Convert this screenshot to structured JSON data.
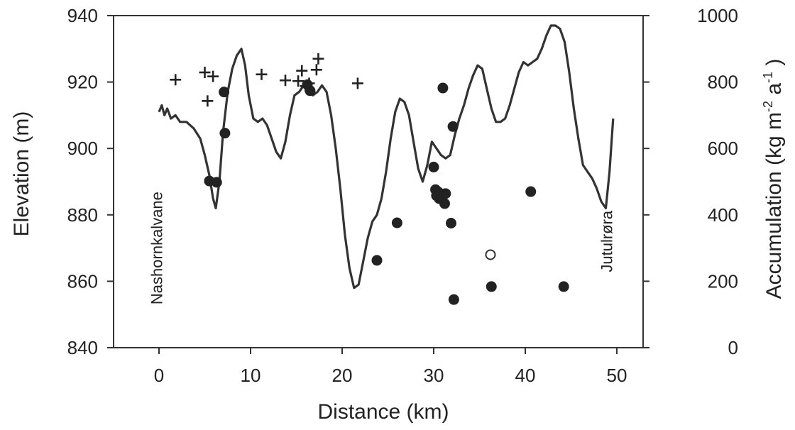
{
  "chart_data": {
    "type": "line",
    "xlabel": "Distance (km)",
    "ylabel_left": "Elevation (m)",
    "ylabel_right": [
      "Accumulation (kg m",
      "-2",
      " a",
      "-1",
      " )"
    ],
    "xlim": [
      -5,
      55
    ],
    "ylim_left": [
      840,
      940
    ],
    "ylim_right": [
      0,
      1000
    ],
    "x_ticks": [
      0,
      10,
      20,
      30,
      40,
      50
    ],
    "y_ticks_left": [
      840,
      860,
      880,
      900,
      920,
      940
    ],
    "y_ticks_right": [
      0,
      200,
      400,
      600,
      800,
      1000
    ],
    "annotations": [
      {
        "text": "Nashornkalvane",
        "x": 0.5,
        "y": 870
      },
      {
        "text": "Jutulrøra",
        "x": 49.5,
        "y": 872
      }
    ],
    "elevation_profile": {
      "x": [
        0,
        0.3,
        0.6,
        0.9,
        1.3,
        1.8,
        2.3,
        3.0,
        3.8,
        4.5,
        5.0,
        5.5,
        5.9,
        6.2,
        6.6,
        7.0,
        7.5,
        8.0,
        8.5,
        9.0,
        9.4,
        9.8,
        10.3,
        10.8,
        11.3,
        11.8,
        12.3,
        12.8,
        13.3,
        13.8,
        14.3,
        14.8,
        15.3,
        15.8,
        16.3,
        16.8,
        17.3,
        17.8,
        18.3,
        18.8,
        19.3,
        19.8,
        20.3,
        20.8,
        21.3,
        21.8,
        22.3,
        22.8,
        23.3,
        23.8,
        24.3,
        24.8,
        25.3,
        25.8,
        26.3,
        26.8,
        27.3,
        27.8,
        28.3,
        28.8,
        29.3,
        29.8,
        30.3,
        30.8,
        31.3,
        31.8,
        32.3,
        32.8,
        33.3,
        33.8,
        34.3,
        34.8,
        35.3,
        35.8,
        36.3,
        36.8,
        37.3,
        37.8,
        38.3,
        38.8,
        39.3,
        39.8,
        40.3,
        40.8,
        41.3,
        41.8,
        42.3,
        42.8,
        43.3,
        43.8,
        44.3,
        44.8,
        45.3,
        45.8,
        46.3,
        46.8,
        47.3,
        47.8,
        48.3,
        48.8,
        49.2,
        49.6
      ],
      "y": [
        911,
        913,
        910,
        912,
        909,
        910,
        908,
        908,
        906,
        903,
        898,
        892,
        885,
        882,
        890,
        905,
        917,
        924,
        928,
        930,
        925,
        916,
        909,
        908,
        909,
        907,
        903,
        899,
        897,
        902,
        910,
        916,
        917,
        919,
        918,
        916,
        917,
        919,
        917,
        910,
        900,
        888,
        874,
        864,
        858,
        859,
        866,
        873,
        878,
        880,
        885,
        893,
        903,
        911,
        915,
        914,
        910,
        902,
        894,
        890,
        895,
        902,
        900,
        898,
        897,
        898,
        904,
        909,
        913,
        918,
        922,
        925,
        924,
        918,
        912,
        908,
        908,
        909,
        913,
        918,
        923,
        926,
        925,
        926,
        927,
        930,
        934,
        937,
        937,
        936,
        932,
        923,
        912,
        903,
        895,
        893,
        891,
        888,
        884,
        882,
        893,
        909
      ]
    },
    "series": [
      {
        "marker": "plus",
        "x": [
          1.8,
          5.0,
          5.3,
          5.9,
          11.2,
          13.8,
          15.2,
          15.6,
          16.0,
          16.4,
          17.2,
          17.4,
          21.7
        ],
        "y": [
          920.7,
          922.9,
          914.3,
          921.7,
          922.3,
          920.5,
          920.3,
          923.4,
          918.8,
          919.6,
          923.7,
          927.0,
          919.6
        ]
      },
      {
        "marker": "filled-circle",
        "x": [
          5.5,
          6.3,
          7.1,
          7.2,
          16.2,
          16.5,
          23.8,
          26.0,
          30.0,
          30.2,
          30.3,
          30.5,
          30.6,
          31.0,
          31.1,
          31.2,
          31.3,
          31.9,
          32.1,
          32.2,
          36.3,
          40.6,
          44.2
        ],
        "y": [
          890.2,
          889.8,
          917.0,
          904.6,
          919.2,
          917.4,
          866.3,
          877.6,
          894.4,
          887.6,
          885.8,
          886.9,
          884.9,
          918.2,
          886.3,
          883.4,
          886.4,
          877.5,
          906.6,
          854.5,
          858.4,
          887.0,
          858.4
        ]
      },
      {
        "marker": "open-circle",
        "x": [
          36.2
        ],
        "y": [
          868.0
        ]
      }
    ]
  }
}
